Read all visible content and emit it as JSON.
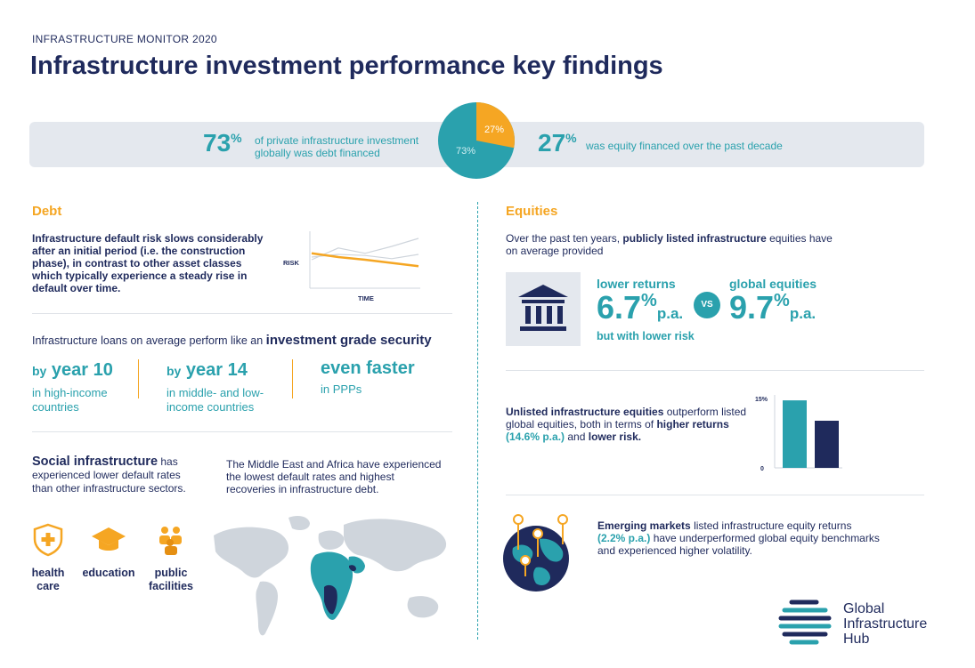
{
  "header": {
    "kicker": "INFRASTRUCTURE MONITOR 2020",
    "title": "Infrastructure investment performance key findings"
  },
  "band": {
    "left_value": "73",
    "left_pct": "%",
    "left_text_1": "of private infrastructure investment",
    "left_text_2": "globally was debt financed",
    "right_value": "27",
    "right_pct": "%",
    "right_text": "was equity financed over the past decade",
    "pie": {
      "debt_label": "73%",
      "equity_label": "27%",
      "debt_share": 0.73,
      "equity_share": 0.27
    },
    "colors": {
      "debt": "#2aa1ad",
      "equity": "#f5a623"
    }
  },
  "debt": {
    "heading": "Debt",
    "intro_1": "Infrastructure default risk slows considerably",
    "intro_2": "after an initial period (i.e. the construction",
    "intro_3": "phase), in contrast to other asset classes",
    "intro_4": "which typically experience a steady rise in",
    "intro_5": "default over time.",
    "chart_ylabel": "RISK",
    "chart_xlabel": "TIME",
    "loans_text_a": "Infrastructure loans on average perform like an",
    "loans_text_b": "investment grade security",
    "stats": [
      {
        "by": "by",
        "head": "year 10",
        "sub_1": "in high-income",
        "sub_2": "countries"
      },
      {
        "by": "by",
        "head": "year 14",
        "sub_1": "in middle- and low-",
        "sub_2": "income countries"
      },
      {
        "head": "even faster",
        "sub_1": "in PPPs"
      }
    ],
    "social_bold": "Social infrastructure",
    "social_rest_1": "has",
    "social_rest_2": "experienced lower default rates",
    "social_rest_3": "than other infrastructure sectors.",
    "mea_1": "The Middle East and Africa have experienced",
    "mea_2": "the lowest default rates and highest",
    "mea_3": "recoveries in infrastructure debt.",
    "icons": [
      {
        "icon": "shield-plus-icon",
        "label_1": "health",
        "label_2": "care"
      },
      {
        "icon": "graduation-cap-icon",
        "label_1": "education",
        "label_2": ""
      },
      {
        "icon": "people-group-icon",
        "label_1": "public",
        "label_2": "facilities"
      }
    ]
  },
  "equities": {
    "heading": "Equities",
    "intro_a": "Over the past ten years,",
    "intro_b": "publicly listed infrastructure",
    "intro_c": "equities have",
    "intro_d": "on average provided",
    "lower_returns": "lower returns",
    "lower_value": "6.7",
    "pct": "%",
    "pa": "p.a.",
    "lower_sub": "but with lower risk",
    "vs": "VS",
    "global_label": "global equities",
    "global_value": "9.7",
    "unlisted_b1": "Unlisted infrastructure equities",
    "unlisted_r1": "outperform listed",
    "unlisted_r2": "global equities, both in terms of",
    "unlisted_b2": "higher returns",
    "unlisted_b3": "(14.6% p.a.)",
    "unlisted_r3": "and",
    "unlisted_b4": "lower risk.",
    "emerging_b1": "Emerging markets",
    "emerging_r1": "listed infrastructure equity returns",
    "emerging_b2": "(2.2% p.a.)",
    "emerging_r2": "have underperformed global equity benchmarks",
    "emerging_r3": "and experienced higher volatility."
  },
  "chart_data": [
    {
      "type": "line",
      "xlabel": "TIME",
      "ylabel": "RISK",
      "series": [
        {
          "values": [
            0.62,
            0.55,
            0.5,
            0.44,
            0.38
          ]
        },
        {
          "values": [
            0.5,
            0.72,
            0.62,
            0.75,
            0.9
          ]
        },
        {
          "values": [
            0.55,
            0.6,
            0.58,
            0.52,
            0.6
          ]
        }
      ]
    },
    {
      "type": "bar",
      "yticks": [
        "15%",
        "0"
      ],
      "ylim": [
        0,
        15
      ],
      "values": [
        14.6,
        10.2
      ],
      "colors": [
        "#2aa1ad",
        "#1f2a5c"
      ]
    }
  ],
  "logo": {
    "line_1": "Global",
    "line_2": "Infrastructure",
    "line_3": "Hub"
  }
}
